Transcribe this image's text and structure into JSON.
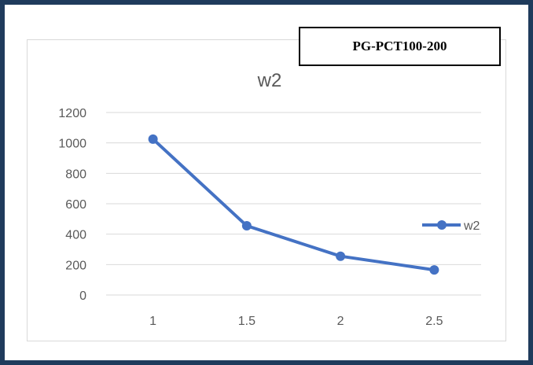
{
  "label_box": "PG-PCT100-200",
  "colors": {
    "frame": "#1f3b5c",
    "series": "#4472c4",
    "grid": "#d9d9d9",
    "tick_text": "#595959",
    "title_text": "#595959"
  },
  "chart_data": {
    "type": "line",
    "title": "w2",
    "xlabel": "",
    "ylabel": "",
    "categories": [
      "1",
      "1.5",
      "2",
      "2.5"
    ],
    "series": [
      {
        "name": "w2",
        "values": [
          1025,
          455,
          255,
          165
        ],
        "color": "#4472c4"
      }
    ],
    "ylim": [
      0,
      1200
    ],
    "yticks": [
      0,
      200,
      400,
      600,
      800,
      1000,
      1200
    ],
    "grid": true,
    "legend_position": "right"
  }
}
